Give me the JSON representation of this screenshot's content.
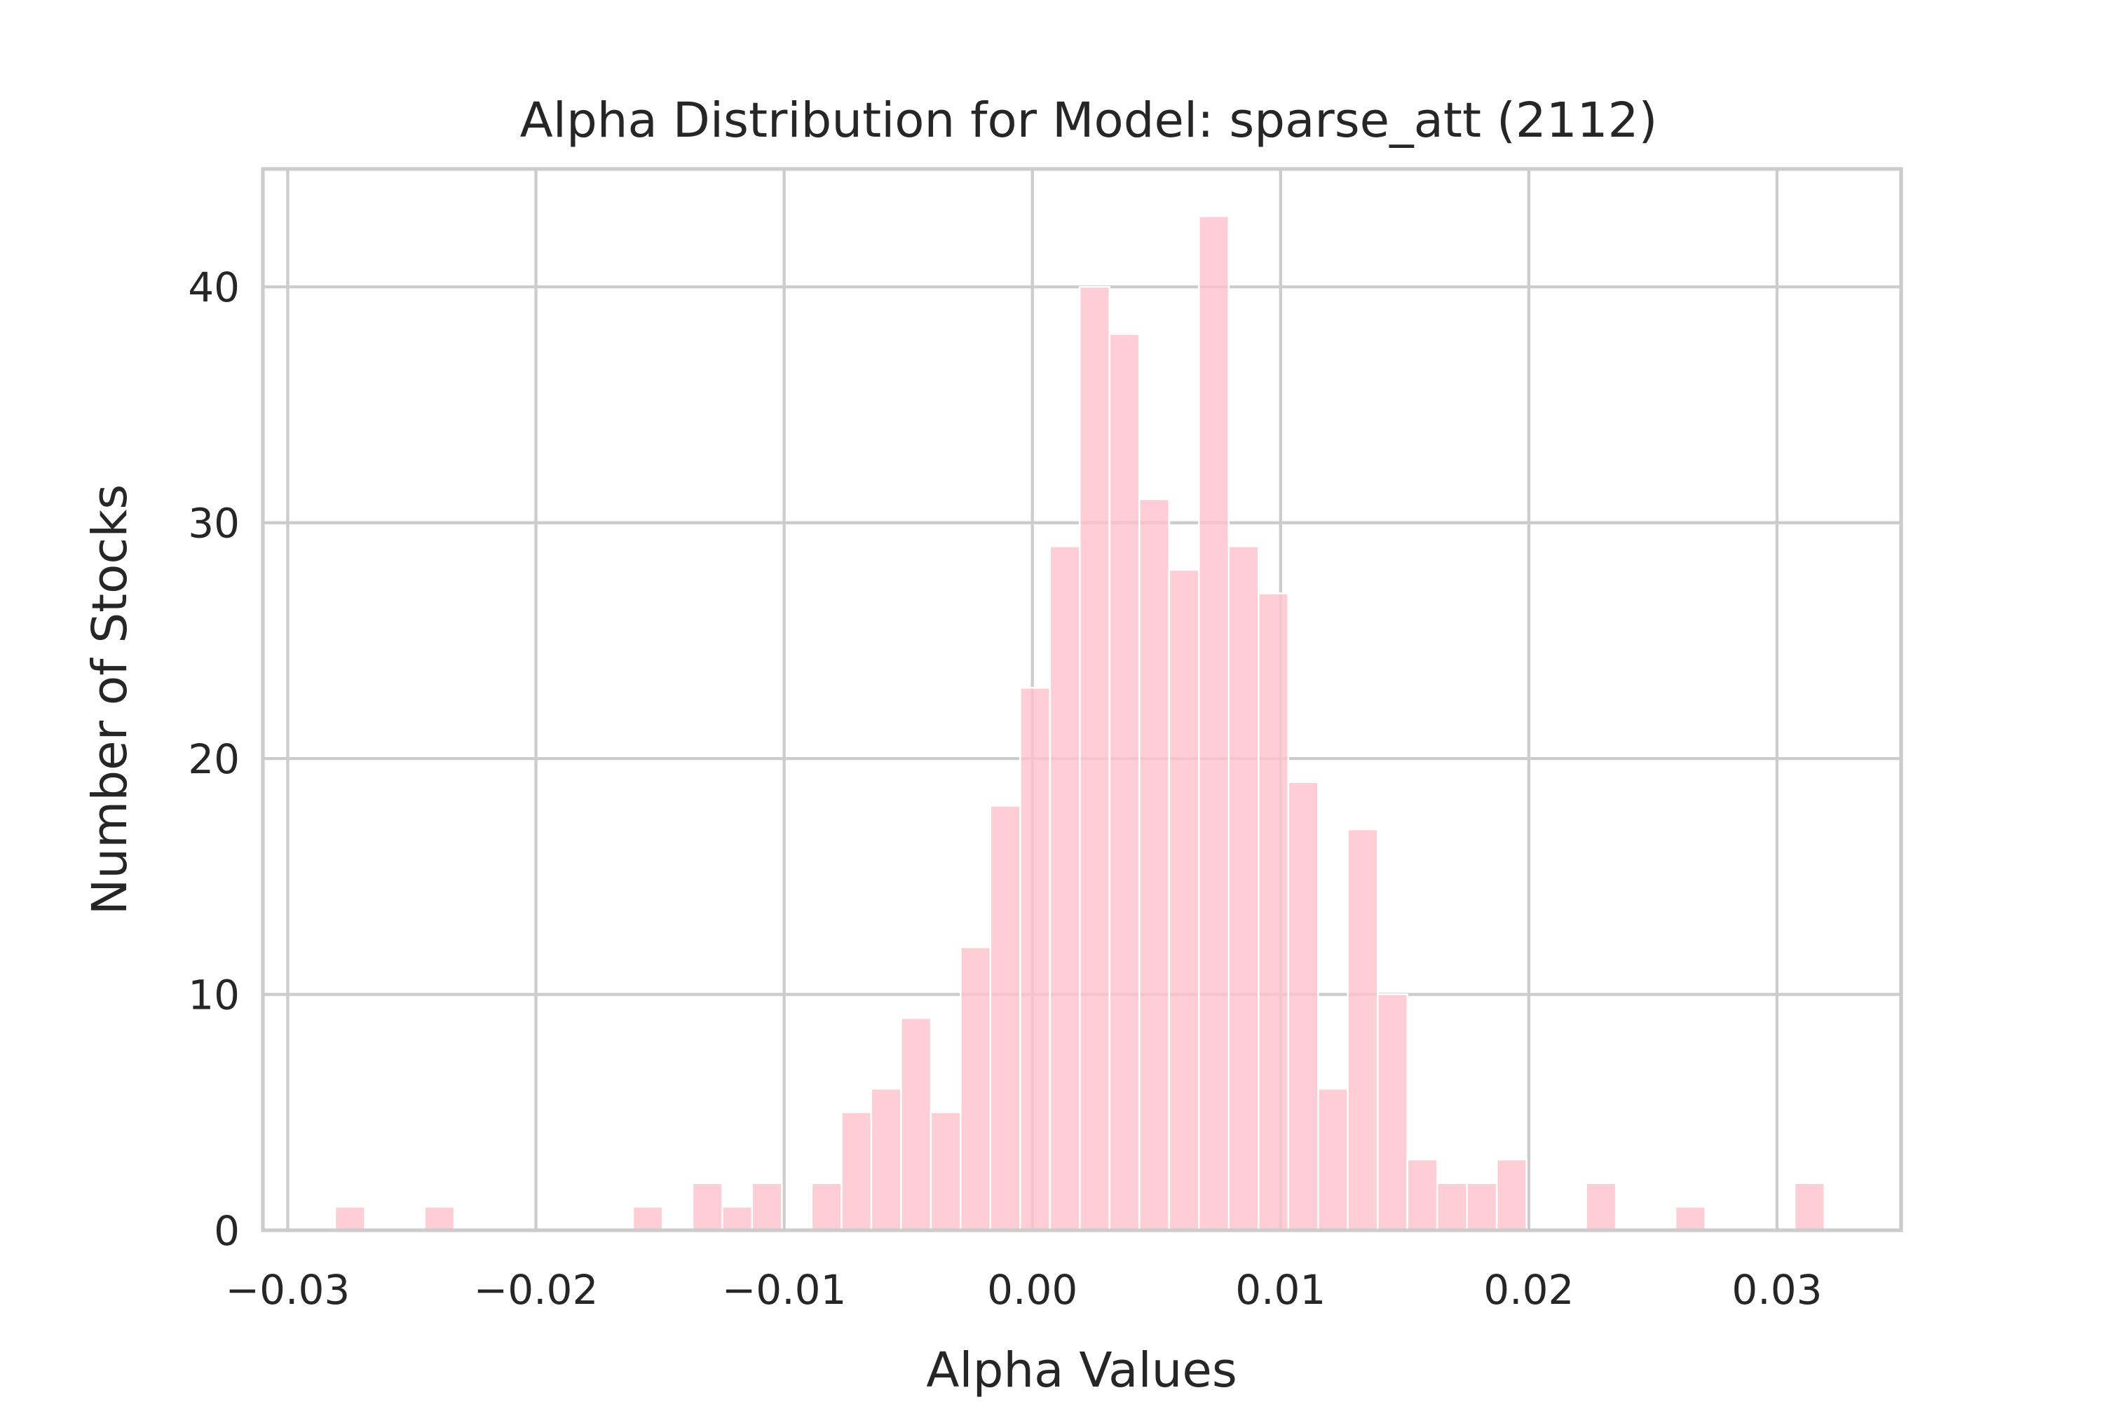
{
  "chart_data": {
    "type": "bar",
    "title": "Alpha Distribution for Model: sparse_att (2112)",
    "xlabel": "Alpha Values",
    "ylabel": "Number of Stocks",
    "xlim": [
      -0.031,
      0.035
    ],
    "ylim": [
      0,
      45
    ],
    "xticks": [
      -0.03,
      -0.02,
      -0.01,
      0.0,
      0.01,
      0.02,
      0.03
    ],
    "xtick_labels": [
      "−0.03",
      "−0.02",
      "−0.01",
      "0.00",
      "0.01",
      "0.02",
      "0.03"
    ],
    "yticks": [
      0,
      10,
      20,
      30,
      40
    ],
    "ytick_labels": [
      "0",
      "10",
      "20",
      "30",
      "40"
    ],
    "grid": true,
    "bar_color": "#ffc0cb",
    "bar_opacity": 0.8,
    "bin_start": -0.02809,
    "bin_width": 0.0012,
    "counts": [
      1,
      0,
      0,
      1,
      0,
      0,
      0,
      0,
      0,
      0,
      1,
      0,
      2,
      1,
      2,
      0,
      2,
      5,
      6,
      9,
      5,
      12,
      18,
      23,
      29,
      40,
      38,
      31,
      28,
      43,
      29,
      27,
      19,
      6,
      17,
      10,
      3,
      2,
      2,
      3,
      0,
      0,
      2,
      0,
      0,
      1,
      0,
      0,
      0,
      2
    ]
  }
}
